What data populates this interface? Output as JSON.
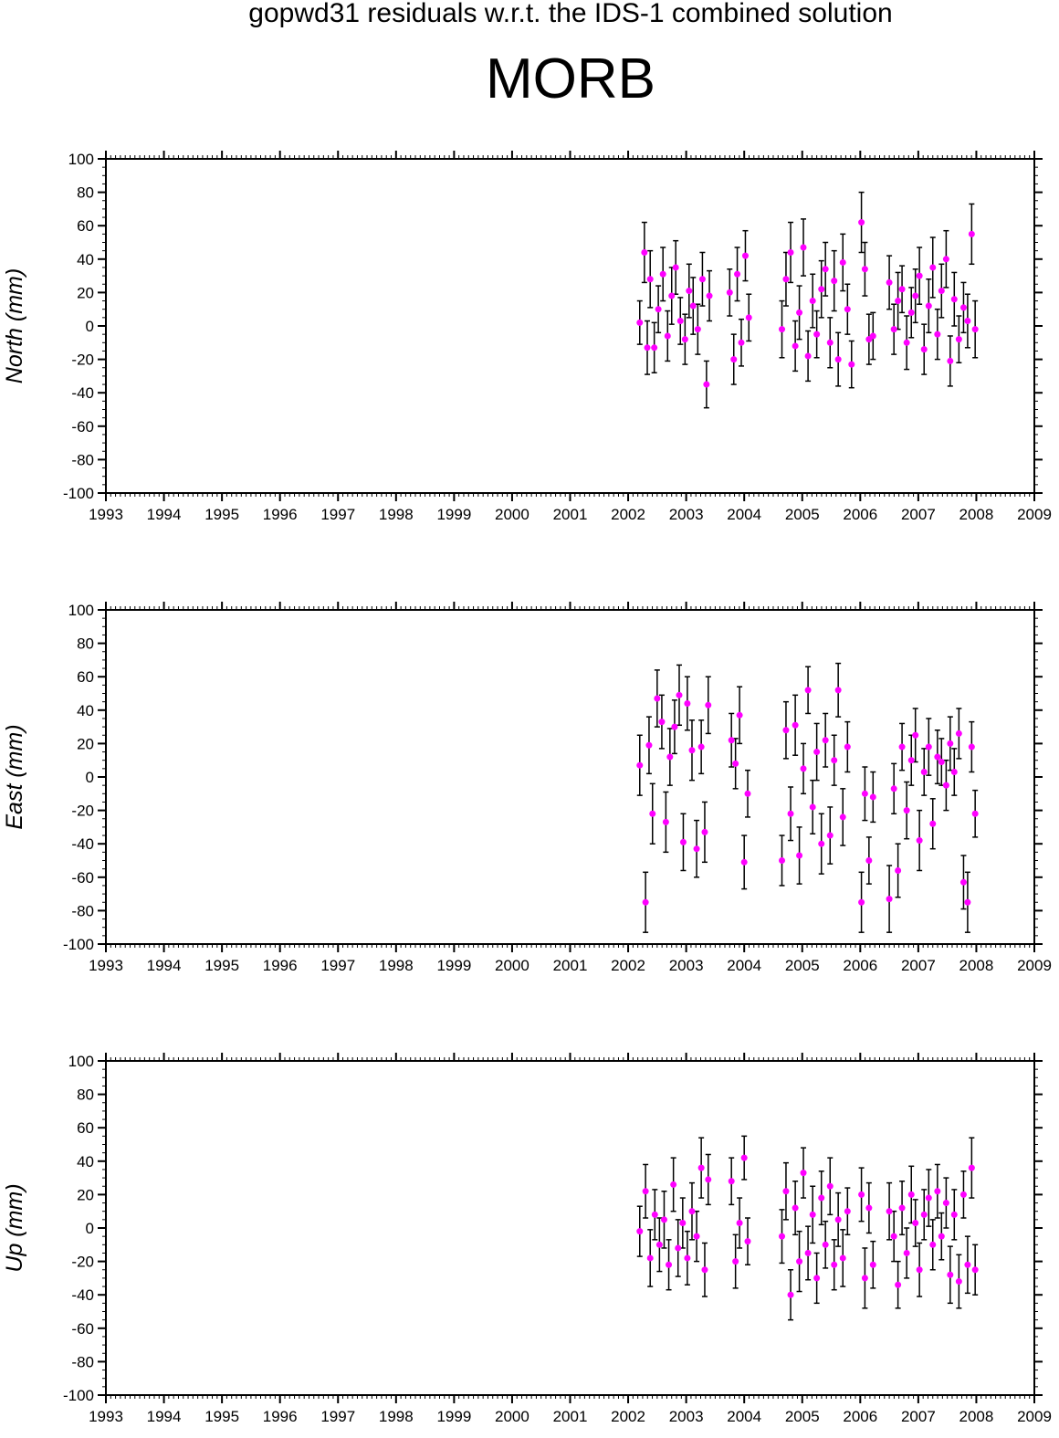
{
  "title": "gopwd31 residuals w.r.t. the IDS-1 combined solution",
  "station": "MORB",
  "colors": {
    "point": "#ff00ff",
    "errorbar": "#000000",
    "axis": "#000000",
    "background": "#ffffff"
  },
  "chart_data": [
    {
      "type": "scatter",
      "ylabel": "North (mm)",
      "xlim": [
        1993,
        2009
      ],
      "ylim": [
        -100,
        100
      ],
      "x_ticks": [
        "1993",
        "1994",
        "1995",
        "1996",
        "1997",
        "1998",
        "1999",
        "2000",
        "2001",
        "2002",
        "2003",
        "2004",
        "2005",
        "2006",
        "2007",
        "2008",
        "2009"
      ],
      "y_ticks": [
        "100",
        "80",
        "60",
        "40",
        "20",
        "0",
        "-20",
        "-40",
        "-60",
        "-80",
        "-100"
      ],
      "grid": false,
      "series": [
        {
          "x": [
            2002.2,
            2002.28,
            2002.33,
            2002.38,
            2002.45,
            2002.52,
            2002.6,
            2002.68,
            2002.75,
            2002.82,
            2002.9,
            2002.98,
            2003.05,
            2003.12,
            2003.2,
            2003.28,
            2003.35,
            2003.4,
            2003.75,
            2003.82,
            2003.88,
            2003.95,
            2004.02,
            2004.08,
            2004.65,
            2004.72,
            2004.8,
            2004.88,
            2004.95,
            2005.02,
            2005.1,
            2005.18,
            2005.25,
            2005.33,
            2005.4,
            2005.48,
            2005.55,
            2005.62,
            2005.7,
            2005.78,
            2005.85,
            2006.02,
            2006.08,
            2006.15,
            2006.22,
            2006.5,
            2006.58,
            2006.65,
            2006.72,
            2006.8,
            2006.88,
            2006.95,
            2007.02,
            2007.1,
            2007.18,
            2007.25,
            2007.33,
            2007.4,
            2007.48,
            2007.55,
            2007.62,
            2007.7,
            2007.78,
            2007.85,
            2007.92,
            2007.98
          ],
          "y": [
            2,
            44,
            -13,
            28,
            -13,
            10,
            31,
            -6,
            18,
            35,
            3,
            -8,
            21,
            12,
            -2,
            28,
            -35,
            18,
            20,
            -20,
            31,
            -10,
            42,
            5,
            -2,
            28,
            44,
            -12,
            8,
            47,
            -18,
            15,
            -5,
            22,
            34,
            -10,
            27,
            -20,
            38,
            10,
            -23,
            62,
            34,
            -8,
            -6,
            26,
            -2,
            15,
            22,
            -10,
            8,
            18,
            30,
            -14,
            12,
            35,
            -5,
            21,
            40,
            -21,
            16,
            -8,
            11,
            3,
            55,
            -2
          ],
          "err": [
            13,
            18,
            16,
            17,
            15,
            14,
            16,
            15,
            17,
            16,
            14,
            15,
            16,
            17,
            15,
            16,
            14,
            15,
            14,
            15,
            16,
            14,
            15,
            14,
            17,
            16,
            18,
            15,
            16,
            17,
            15,
            16,
            14,
            17,
            16,
            15,
            18,
            16,
            17,
            15,
            14,
            18,
            16,
            15,
            14,
            16,
            15,
            17,
            14,
            16,
            15,
            16,
            17,
            15,
            16,
            18,
            15,
            16,
            17,
            15,
            16,
            14,
            15,
            16,
            18,
            17
          ]
        }
      ]
    },
    {
      "type": "scatter",
      "ylabel": "East (mm)",
      "xlim": [
        1993,
        2009
      ],
      "ylim": [
        -100,
        100
      ],
      "x_ticks": [
        "1993",
        "1994",
        "1995",
        "1996",
        "1997",
        "1998",
        "1999",
        "2000",
        "2001",
        "2002",
        "2003",
        "2004",
        "2005",
        "2006",
        "2007",
        "2008",
        "2009"
      ],
      "y_ticks": [
        "100",
        "80",
        "60",
        "40",
        "20",
        "0",
        "-20",
        "-40",
        "-60",
        "-80",
        "-100"
      ],
      "grid": false,
      "series": [
        {
          "x": [
            2002.2,
            2002.3,
            2002.36,
            2002.42,
            2002.5,
            2002.58,
            2002.65,
            2002.72,
            2002.8,
            2002.88,
            2002.95,
            2003.02,
            2003.1,
            2003.18,
            2003.26,
            2003.32,
            2003.38,
            2003.78,
            2003.85,
            2003.92,
            2004.0,
            2004.06,
            2004.65,
            2004.72,
            2004.8,
            2004.88,
            2004.95,
            2005.02,
            2005.1,
            2005.18,
            2005.25,
            2005.33,
            2005.4,
            2005.48,
            2005.55,
            2005.62,
            2005.7,
            2005.78,
            2006.02,
            2006.08,
            2006.15,
            2006.22,
            2006.5,
            2006.58,
            2006.65,
            2006.72,
            2006.8,
            2006.88,
            2006.95,
            2007.02,
            2007.1,
            2007.18,
            2007.25,
            2007.33,
            2007.4,
            2007.48,
            2007.55,
            2007.62,
            2007.7,
            2007.78,
            2007.85,
            2007.92,
            2007.98
          ],
          "y": [
            7,
            -75,
            19,
            -22,
            47,
            33,
            -27,
            12,
            30,
            49,
            -39,
            44,
            16,
            -43,
            18,
            -33,
            43,
            22,
            8,
            37,
            -51,
            -10,
            -50,
            28,
            -22,
            31,
            -47,
            5,
            52,
            -18,
            15,
            -40,
            22,
            -35,
            10,
            52,
            -24,
            18,
            -75,
            -10,
            -50,
            -12,
            -73,
            -7,
            -56,
            18,
            -20,
            10,
            25,
            -38,
            3,
            18,
            -28,
            12,
            9,
            -5,
            20,
            3,
            26,
            -63,
            -75,
            18,
            -22
          ],
          "err": [
            18,
            18,
            17,
            18,
            17,
            16,
            18,
            17,
            16,
            18,
            17,
            16,
            18,
            17,
            16,
            18,
            17,
            16,
            15,
            17,
            16,
            14,
            15,
            17,
            16,
            18,
            17,
            15,
            14,
            16,
            17,
            18,
            16,
            17,
            15,
            16,
            17,
            15,
            18,
            16,
            14,
            15,
            20,
            15,
            16,
            14,
            17,
            15,
            16,
            18,
            14,
            17,
            15,
            16,
            14,
            15,
            16,
            14,
            15,
            16,
            18,
            15,
            14
          ]
        }
      ]
    },
    {
      "type": "scatter",
      "ylabel": "Up (mm)",
      "xlim": [
        1993,
        2009
      ],
      "ylim": [
        -100,
        100
      ],
      "x_ticks": [
        "1993",
        "1994",
        "1995",
        "1996",
        "1997",
        "1998",
        "1999",
        "2000",
        "2001",
        "2002",
        "2003",
        "2004",
        "2005",
        "2006",
        "2007",
        "2008",
        "2009"
      ],
      "y_ticks": [
        "100",
        "80",
        "60",
        "40",
        "20",
        "0",
        "-20",
        "-40",
        "-60",
        "-80",
        "-100"
      ],
      "grid": false,
      "series": [
        {
          "x": [
            2002.2,
            2002.3,
            2002.38,
            2002.46,
            2002.54,
            2002.62,
            2002.7,
            2002.78,
            2002.86,
            2002.94,
            2003.02,
            2003.1,
            2003.18,
            2003.26,
            2003.32,
            2003.38,
            2003.78,
            2003.85,
            2003.92,
            2004.0,
            2004.06,
            2004.65,
            2004.72,
            2004.8,
            2004.88,
            2004.95,
            2005.02,
            2005.1,
            2005.18,
            2005.25,
            2005.33,
            2005.4,
            2005.48,
            2005.55,
            2005.62,
            2005.7,
            2005.78,
            2006.02,
            2006.08,
            2006.15,
            2006.22,
            2006.5,
            2006.58,
            2006.65,
            2006.72,
            2006.8,
            2006.88,
            2006.95,
            2007.02,
            2007.1,
            2007.18,
            2007.25,
            2007.33,
            2007.4,
            2007.48,
            2007.55,
            2007.62,
            2007.7,
            2007.78,
            2007.85,
            2007.92,
            2007.98
          ],
          "y": [
            -2,
            22,
            -18,
            8,
            -10,
            5,
            -22,
            26,
            -12,
            3,
            -18,
            10,
            -5,
            36,
            -25,
            29,
            28,
            -20,
            3,
            42,
            -8,
            -5,
            22,
            -40,
            12,
            -20,
            33,
            -15,
            8,
            -30,
            18,
            -10,
            25,
            -22,
            5,
            -18,
            10,
            20,
            -30,
            12,
            -22,
            10,
            -5,
            -34,
            12,
            -15,
            20,
            3,
            -25,
            8,
            18,
            -10,
            22,
            -5,
            15,
            -28,
            8,
            -32,
            20,
            -22,
            36,
            -25
          ],
          "err": [
            15,
            16,
            17,
            15,
            16,
            17,
            15,
            16,
            17,
            15,
            16,
            17,
            15,
            18,
            16,
            15,
            14,
            16,
            15,
            13,
            14,
            16,
            17,
            15,
            16,
            18,
            15,
            16,
            17,
            15,
            16,
            14,
            17,
            15,
            16,
            17,
            14,
            16,
            18,
            15,
            14,
            17,
            15,
            14,
            16,
            15,
            17,
            14,
            16,
            15,
            17,
            15,
            16,
            14,
            15,
            17,
            15,
            16,
            14,
            17,
            18,
            15
          ]
        }
      ]
    }
  ]
}
